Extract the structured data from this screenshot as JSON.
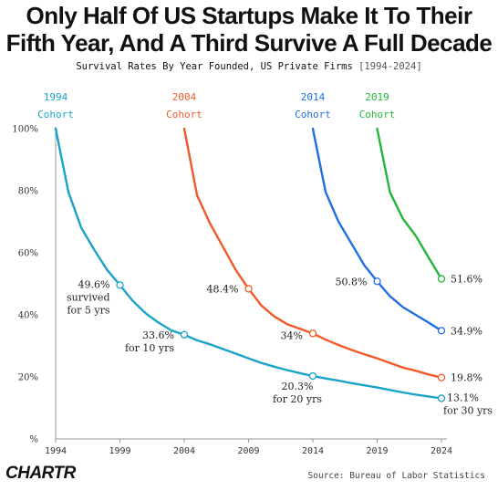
{
  "title_line1": "Only Half Of US Startups Make It To Their",
  "title_line2": "Fifth Year, And A Third Survive A Full Decade",
  "subtitle": "Survival Rates By Year Founded, US Private Firms",
  "subtitle_range": "[1994-2024]",
  "logo": "CHARTR",
  "source": "Source: Bureau of Labor Statistics",
  "chart_data": {
    "type": "line",
    "title": "Only Half Of US Startups Make It To Their Fifth Year, And A Third Survive A Full Decade",
    "subtitle": "Survival Rates By Year Founded, US Private Firms [1994-2024]",
    "xlim": [
      1994,
      2024
    ],
    "ylim": [
      0,
      100
    ],
    "x_ticks": [
      1994,
      1999,
      2004,
      2009,
      2014,
      2019,
      2024
    ],
    "y_ticks": [
      {
        "value": 0,
        "label": "%"
      },
      {
        "value": 20,
        "label": "20%"
      },
      {
        "value": 40,
        "label": "40%"
      },
      {
        "value": 60,
        "label": "60%"
      },
      {
        "value": 80,
        "label": "80%"
      },
      {
        "value": 100,
        "label": "100%"
      }
    ],
    "grid": false,
    "series": [
      {
        "name": "1994 Cohort",
        "label_year": "1994",
        "label_word": "Cohort",
        "color": "#1aa3c9",
        "x": [
          1994,
          1995,
          1996,
          1997,
          1998,
          1999,
          2000,
          2001,
          2002,
          2003,
          2004,
          2005,
          2006,
          2007,
          2008,
          2009,
          2010,
          2011,
          2012,
          2013,
          2014,
          2015,
          2016,
          2017,
          2018,
          2019,
          2020,
          2021,
          2022,
          2023,
          2024
        ],
        "y": [
          100,
          79.5,
          68,
          61,
          54.5,
          49.6,
          44.5,
          40.5,
          37.5,
          35,
          33.6,
          31.8,
          30.5,
          29,
          27.5,
          26,
          24.5,
          23.3,
          22.2,
          21.2,
          20.3,
          19.5,
          18.8,
          18,
          17.3,
          16.6,
          15.8,
          15,
          14.3,
          13.7,
          13.1
        ]
      },
      {
        "name": "2004 Cohort",
        "label_year": "2004",
        "label_word": "Cohort",
        "color": "#f05a2a",
        "x": [
          2004,
          2005,
          2006,
          2007,
          2008,
          2009,
          2010,
          2011,
          2012,
          2013,
          2014,
          2015,
          2016,
          2017,
          2018,
          2019,
          2020,
          2021,
          2022,
          2023,
          2024
        ],
        "y": [
          100,
          78.5,
          69.5,
          62,
          54.5,
          48.4,
          43,
          39.5,
          37,
          35.5,
          34,
          32,
          30.3,
          28.7,
          27.3,
          26,
          24.5,
          23,
          22,
          20.8,
          19.8
        ]
      },
      {
        "name": "2014 Cohort",
        "label_year": "2014",
        "label_word": "Cohort",
        "color": "#1f6fe0",
        "x": [
          2014,
          2015,
          2016,
          2017,
          2018,
          2019,
          2020,
          2021,
          2022,
          2023,
          2024
        ],
        "y": [
          100,
          79.5,
          70,
          63,
          56,
          50.8,
          46,
          42.5,
          40,
          37.5,
          34.9
        ]
      },
      {
        "name": "2019 Cohort",
        "label_year": "2019",
        "label_word": "Cohort",
        "color": "#22b53a",
        "x": [
          2019,
          2020,
          2021,
          2022,
          2023,
          2024
        ],
        "y": [
          100,
          79.5,
          71,
          65.5,
          58.5,
          51.6
        ]
      }
    ],
    "annotations": [
      {
        "series": 0,
        "x": 1999,
        "y": 49.6,
        "lines": [
          "49.6%",
          "survived",
          "for 5 yrs"
        ]
      },
      {
        "series": 0,
        "x": 2004,
        "y": 33.6,
        "lines": [
          "33.6%",
          "for 10 yrs"
        ]
      },
      {
        "series": 0,
        "x": 2014,
        "y": 20.3,
        "lines": [
          "20.3%",
          "for 20 yrs"
        ]
      },
      {
        "series": 0,
        "x": 2024,
        "y": 13.1,
        "lines": [
          "13.1%",
          "for 30 yrs"
        ]
      },
      {
        "series": 1,
        "x": 2009,
        "y": 48.4,
        "lines": [
          "48.4%"
        ]
      },
      {
        "series": 1,
        "x": 2014,
        "y": 34,
        "lines": [
          "34%"
        ]
      },
      {
        "series": 1,
        "x": 2024,
        "y": 19.8,
        "lines": [
          "19.8%"
        ]
      },
      {
        "series": 2,
        "x": 2019,
        "y": 50.8,
        "lines": [
          "50.8%"
        ]
      },
      {
        "series": 2,
        "x": 2024,
        "y": 34.9,
        "lines": [
          "34.9%"
        ]
      },
      {
        "series": 3,
        "x": 2024,
        "y": 51.6,
        "lines": [
          "51.6%"
        ]
      }
    ]
  }
}
